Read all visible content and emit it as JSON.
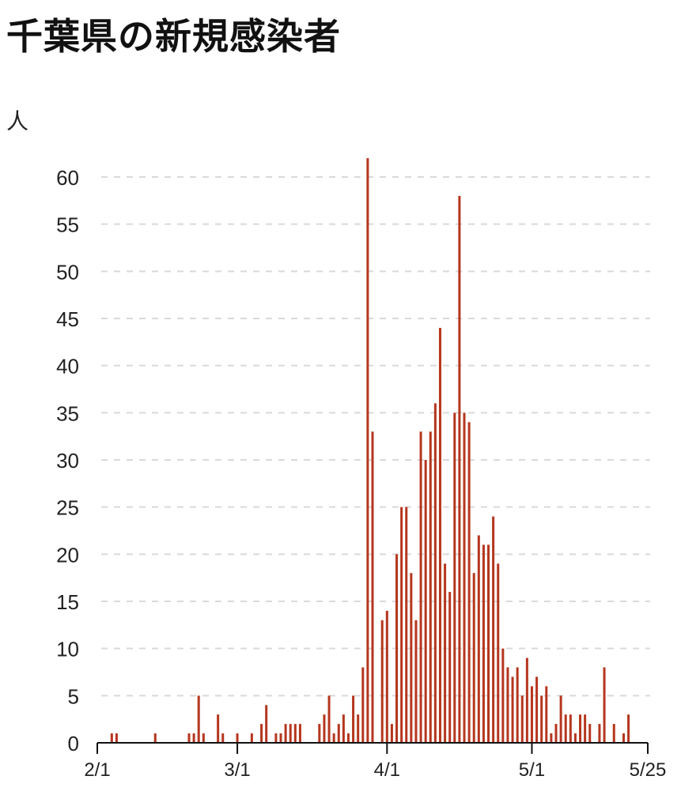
{
  "chart_data": {
    "type": "bar",
    "title": "千葉県の新規感染者",
    "ylabel": "人",
    "xlabel": "",
    "ylim": [
      0,
      62
    ],
    "yticks": [
      0,
      5,
      10,
      15,
      20,
      25,
      30,
      35,
      40,
      45,
      50,
      55,
      60
    ],
    "xticks": [
      {
        "label": "2/1",
        "date": "2020-02-01"
      },
      {
        "label": "3/1",
        "date": "2020-03-01"
      },
      {
        "label": "4/1",
        "date": "2020-04-01"
      },
      {
        "label": "5/1",
        "date": "2020-05-01"
      },
      {
        "label": "5/25",
        "date": "2020-05-25"
      }
    ],
    "x_range": [
      "2020-02-01",
      "2020-05-25"
    ],
    "grid": "horizontal dashed",
    "bar_color": "#b5361e",
    "series": [
      {
        "points": [
          [
            "2020-02-04",
            1
          ],
          [
            "2020-02-05",
            1
          ],
          [
            "2020-02-13",
            1
          ],
          [
            "2020-02-20",
            1
          ],
          [
            "2020-02-21",
            1
          ],
          [
            "2020-02-22",
            5
          ],
          [
            "2020-02-23",
            1
          ],
          [
            "2020-02-26",
            3
          ],
          [
            "2020-02-27",
            1
          ],
          [
            "2020-03-01",
            1
          ],
          [
            "2020-03-04",
            1
          ],
          [
            "2020-03-06",
            2
          ],
          [
            "2020-03-07",
            4
          ],
          [
            "2020-03-09",
            1
          ],
          [
            "2020-03-10",
            1
          ],
          [
            "2020-03-11",
            2
          ],
          [
            "2020-03-12",
            2
          ],
          [
            "2020-03-13",
            2
          ],
          [
            "2020-03-14",
            2
          ],
          [
            "2020-03-18",
            2
          ],
          [
            "2020-03-19",
            3
          ],
          [
            "2020-03-20",
            5
          ],
          [
            "2020-03-21",
            1
          ],
          [
            "2020-03-22",
            2
          ],
          [
            "2020-03-23",
            3
          ],
          [
            "2020-03-24",
            1
          ],
          [
            "2020-03-25",
            5
          ],
          [
            "2020-03-26",
            3
          ],
          [
            "2020-03-27",
            8
          ],
          [
            "2020-03-28",
            62
          ],
          [
            "2020-03-29",
            33
          ],
          [
            "2020-03-31",
            13
          ],
          [
            "2020-04-01",
            14
          ],
          [
            "2020-04-02",
            2
          ],
          [
            "2020-04-03",
            20
          ],
          [
            "2020-04-04",
            25
          ],
          [
            "2020-04-05",
            25
          ],
          [
            "2020-04-06",
            18
          ],
          [
            "2020-04-07",
            13
          ],
          [
            "2020-04-08",
            33
          ],
          [
            "2020-04-09",
            30
          ],
          [
            "2020-04-10",
            33
          ],
          [
            "2020-04-11",
            36
          ],
          [
            "2020-04-12",
            44
          ],
          [
            "2020-04-13",
            19
          ],
          [
            "2020-04-14",
            16
          ],
          [
            "2020-04-15",
            35
          ],
          [
            "2020-04-16",
            58
          ],
          [
            "2020-04-17",
            35
          ],
          [
            "2020-04-18",
            34
          ],
          [
            "2020-04-19",
            18
          ],
          [
            "2020-04-20",
            22
          ],
          [
            "2020-04-21",
            21
          ],
          [
            "2020-04-22",
            21
          ],
          [
            "2020-04-23",
            24
          ],
          [
            "2020-04-24",
            19
          ],
          [
            "2020-04-25",
            10
          ],
          [
            "2020-04-26",
            8
          ],
          [
            "2020-04-27",
            7
          ],
          [
            "2020-04-28",
            8
          ],
          [
            "2020-04-29",
            5
          ],
          [
            "2020-04-30",
            9
          ],
          [
            "2020-05-01",
            6
          ],
          [
            "2020-05-02",
            7
          ],
          [
            "2020-05-03",
            5
          ],
          [
            "2020-05-04",
            6
          ],
          [
            "2020-05-05",
            1
          ],
          [
            "2020-05-06",
            2
          ],
          [
            "2020-05-07",
            5
          ],
          [
            "2020-05-08",
            3
          ],
          [
            "2020-05-09",
            3
          ],
          [
            "2020-05-10",
            1
          ],
          [
            "2020-05-11",
            3
          ],
          [
            "2020-05-12",
            3
          ],
          [
            "2020-05-13",
            2
          ],
          [
            "2020-05-15",
            2
          ],
          [
            "2020-05-16",
            8
          ],
          [
            "2020-05-18",
            2
          ],
          [
            "2020-05-20",
            1
          ],
          [
            "2020-05-21",
            3
          ]
        ]
      }
    ]
  }
}
